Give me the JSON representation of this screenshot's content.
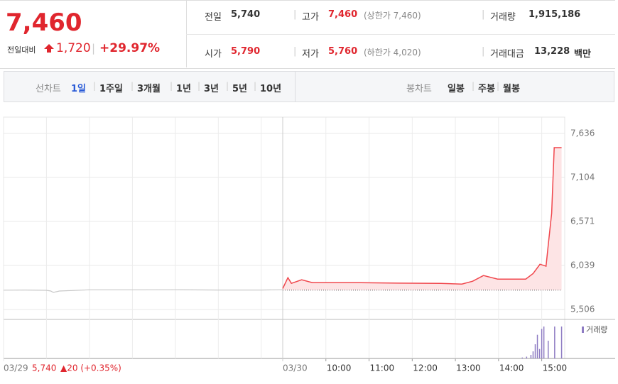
{
  "header": {
    "price": "7,460",
    "change_label": "전일대비",
    "change": "1,720",
    "change_rate": "+29.97%",
    "stats": [
      [
        {
          "label": "전일",
          "value": "5,740"
        },
        {
          "label": "고가",
          "value": "7,460",
          "extra": "(상한가 7,460)"
        },
        {
          "label": "거래량",
          "value": "1,915,186"
        }
      ],
      [
        {
          "label": "시가",
          "value": "5,790"
        },
        {
          "label": "저가",
          "value": "5,760",
          "extra": "(하한가 4,020)"
        },
        {
          "label": "거래대금",
          "value": "13,228",
          "unit": "백만"
        }
      ]
    ]
  },
  "tabs": {
    "line_label": "선차트",
    "line_periods": [
      "1일",
      "1주일",
      "3개월",
      "1년",
      "3년",
      "5년",
      "10년"
    ],
    "candle_label": "봉차트",
    "candle_periods": [
      "일봉",
      "주봉",
      "월봉"
    ]
  },
  "chart_data": {
    "type": "line",
    "ylim": [
      5386,
      7834
    ],
    "yticks": [
      {
        "value": 7636,
        "label": "7,636"
      },
      {
        "value": 7104,
        "label": "7,104"
      },
      {
        "value": 6571,
        "label": "6,571"
      },
      {
        "value": 6039,
        "label": "6,039"
      },
      {
        "value": 5506,
        "label": "5,506"
      }
    ],
    "xlim": [
      9,
      15.5
    ],
    "xticks": [
      {
        "value": 10,
        "label": "10:00"
      },
      {
        "value": 11,
        "label": "11:00"
      },
      {
        "value": 12,
        "label": "12:00"
      },
      {
        "value": 13,
        "label": "13:00"
      },
      {
        "value": 14,
        "label": "14:00"
      },
      {
        "value": 15,
        "label": "15:00"
      }
    ],
    "baseline": 5740,
    "grid": true,
    "sessions": [
      {
        "label": "03/29",
        "close_label": "5,740",
        "change_label": "▲20 (+0.35%)",
        "color": "#c8c8c8",
        "x": [
          9.0,
          9.5,
          10.0,
          10.1,
          10.16,
          10.3,
          11.0,
          12.0,
          13.0,
          14.0,
          15.0,
          15.5
        ],
        "values": [
          5740,
          5742,
          5738,
          5730,
          5712,
          5730,
          5744,
          5744,
          5745,
          5742,
          5742,
          5745
        ]
      },
      {
        "label": "03/30",
        "color": "#f0474d",
        "fill": "#fde4e5",
        "x": [
          9.0,
          9.12,
          9.2,
          9.44,
          9.69,
          10.68,
          11.67,
          12.66,
          13.15,
          13.4,
          13.65,
          13.98,
          14.63,
          14.8,
          14.96,
          15.1,
          15.16,
          15.23,
          15.29,
          15.46
        ],
        "values": [
          5760,
          5891,
          5822,
          5865,
          5831,
          5831,
          5825,
          5822,
          5814,
          5848,
          5917,
          5874,
          5874,
          5942,
          6053,
          6030,
          6327,
          6669,
          7465,
          7465
        ]
      }
    ],
    "volume": {
      "name": "거래량",
      "color": "#8e7cc3",
      "ylim": [
        0,
        300000
      ],
      "x": [
        14.55,
        14.65,
        14.75,
        14.8,
        14.85,
        14.9,
        14.95,
        15.0,
        15.05,
        15.15,
        15.3,
        15.46
      ],
      "values": [
        8000,
        15000,
        30000,
        60000,
        120000,
        200000,
        80000,
        250000,
        270000,
        150000,
        270000,
        270000
      ]
    }
  }
}
